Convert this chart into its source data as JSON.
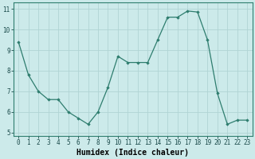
{
  "x": [
    0,
    1,
    2,
    3,
    4,
    5,
    6,
    7,
    8,
    9,
    10,
    11,
    12,
    13,
    14,
    15,
    16,
    17,
    18,
    19,
    20,
    21,
    22,
    23
  ],
  "y": [
    9.4,
    7.8,
    7.0,
    6.6,
    6.6,
    6.0,
    5.7,
    5.4,
    6.0,
    7.2,
    8.7,
    8.4,
    8.4,
    8.4,
    9.5,
    10.6,
    10.6,
    10.9,
    10.85,
    9.5,
    6.9,
    5.4,
    5.6,
    5.6
  ],
  "line_color": "#2e7d6e",
  "marker": "D",
  "marker_size": 1.8,
  "bg_color": "#cceaea",
  "grid_color_major": "#b0d4d4",
  "grid_color_minor": "#b0d4d4",
  "xlabel": "Humidex (Indice chaleur)",
  "xlabel_fontsize": 7,
  "xlim": [
    -0.5,
    23.5
  ],
  "ylim": [
    4.85,
    11.3
  ],
  "yticks": [
    5,
    6,
    7,
    8,
    9,
    10,
    11
  ],
  "xticks": [
    0,
    1,
    2,
    3,
    4,
    5,
    6,
    7,
    8,
    9,
    10,
    11,
    12,
    13,
    14,
    15,
    16,
    17,
    18,
    19,
    20,
    21,
    22,
    23
  ],
  "tick_fontsize": 5.5,
  "line_width": 0.9
}
